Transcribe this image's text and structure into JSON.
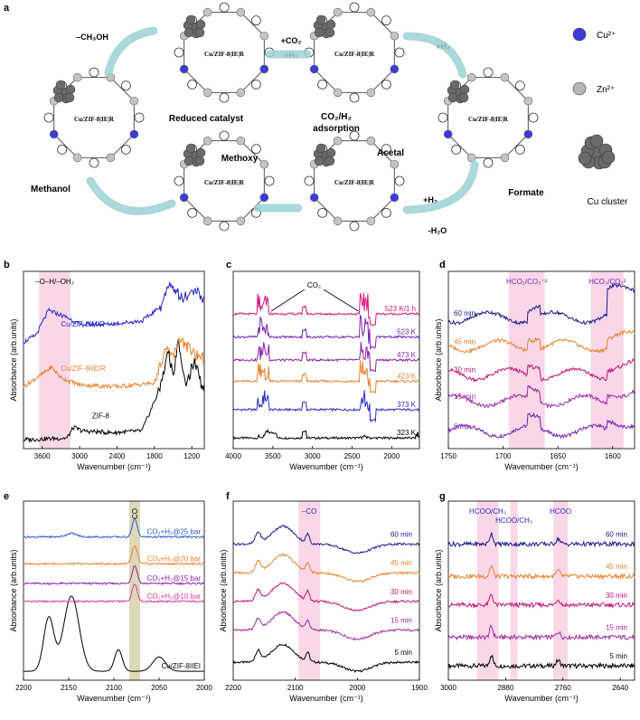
{
  "scheme": {
    "panel_letter": "a",
    "catalyst_label": "Cu/ZIF-8|IE|R",
    "step_labels": [
      "Reduced catalyst",
      "CO₂/H₂",
      "adsorption",
      "Formate",
      "Acetal",
      "Methoxy",
      "Methanol"
    ],
    "arrow_labels": [
      "–CH₃OH",
      "+CO₂",
      "+H₂",
      "+H₂",
      "+H₂",
      "-H₂O"
    ],
    "legend": [
      {
        "label": "Cu²⁺",
        "color": "#3b3bd6"
      },
      {
        "label": "Zn²⁺",
        "color": "#b5b5b5"
      },
      {
        "label": "Cu cluster",
        "color": "#6a6a6a"
      }
    ]
  },
  "chart_data": [
    {
      "panel": "b",
      "type": "line",
      "xlabel": "Wavenumber (cm⁻¹)",
      "ylabel": "Absorbance (arb.units)",
      "xlim": [
        3900,
        1000
      ],
      "xticks": [
        3600,
        3000,
        2400,
        1800,
        1200
      ],
      "highlight": {
        "from": 3650,
        "to": 3150,
        "label": "–O–H/–OH₂"
      },
      "series": [
        {
          "name": "ZIF-8",
          "color": "#000000",
          "offset": 0.05,
          "values": [
            [
              3900,
              0.05
            ],
            [
              3200,
              0.06
            ],
            [
              3100,
              0.12
            ],
            [
              2950,
              0.1
            ],
            [
              2500,
              0.09
            ],
            [
              2000,
              0.1
            ],
            [
              1700,
              0.35
            ],
            [
              1580,
              0.55
            ],
            [
              1500,
              0.4
            ],
            [
              1420,
              0.6
            ],
            [
              1300,
              0.35
            ],
            [
              1150,
              0.5
            ],
            [
              1000,
              0.3
            ]
          ]
        },
        {
          "name": "Cu/ZIF-8IIEIR",
          "color": "#e8822a",
          "offset": 0.35,
          "values": [
            [
              3900,
              0.35
            ],
            [
              3600,
              0.42
            ],
            [
              3450,
              0.46
            ],
            [
              3300,
              0.4
            ],
            [
              3000,
              0.36
            ],
            [
              2400,
              0.35
            ],
            [
              1800,
              0.37
            ],
            [
              1600,
              0.58
            ],
            [
              1500,
              0.52
            ],
            [
              1400,
              0.62
            ],
            [
              1200,
              0.55
            ],
            [
              1000,
              0.5
            ]
          ]
        },
        {
          "name": "Cu/ZIF-8IMIR",
          "color": "#2727c9",
          "offset": 0.6,
          "values": [
            [
              3900,
              0.6
            ],
            [
              3700,
              0.64
            ],
            [
              3500,
              0.78
            ],
            [
              3200,
              0.74
            ],
            [
              3000,
              0.7
            ],
            [
              2600,
              0.7
            ],
            [
              2000,
              0.72
            ],
            [
              1700,
              0.8
            ],
            [
              1550,
              0.94
            ],
            [
              1450,
              0.88
            ],
            [
              1300,
              0.86
            ],
            [
              1150,
              0.9
            ],
            [
              1000,
              0.84
            ]
          ]
        }
      ]
    },
    {
      "panel": "c",
      "type": "line",
      "xlabel": "Wavenumber (cm⁻¹)",
      "ylabel": "",
      "xlim": [
        4000,
        1650
      ],
      "xticks": [
        4000,
        3500,
        3000,
        2500,
        2000
      ],
      "annotation": "CO₂",
      "series": [
        {
          "name": "323 K",
          "color": "#000000",
          "level": 0.06
        },
        {
          "name": "373 K",
          "color": "#2727c9",
          "level": 0.22
        },
        {
          "name": "423 K",
          "color": "#e8822a",
          "level": 0.38
        },
        {
          "name": "473 K",
          "color": "#8a1fa8",
          "level": 0.5
        },
        {
          "name": "523 K",
          "color": "#7a1fb0",
          "level": 0.63
        },
        {
          "name": "523 K/1 h",
          "color": "#d4147a",
          "level": 0.76
        }
      ]
    },
    {
      "panel": "d",
      "type": "line",
      "xlabel": "Wavenumber (cm⁻¹)",
      "ylabel": "Absorbance (arb.units)",
      "xlim": [
        1750,
        1580
      ],
      "xticks": [
        1750,
        1700,
        1650,
        1600
      ],
      "highlights": [
        {
          "from": 1695,
          "to": 1662,
          "label": "HCO₂/CO₃⁻²"
        },
        {
          "from": 1620,
          "to": 1590,
          "label": "HCO₃/CO₃²"
        }
      ],
      "series": [
        {
          "name": "5 min",
          "color": "#7a1fb0",
          "level": 0.1
        },
        {
          "name": "15 min",
          "color": "#a0299e",
          "level": 0.27
        },
        {
          "name": "30 min",
          "color": "#c2157a",
          "level": 0.42
        },
        {
          "name": "45 min",
          "color": "#e8822a",
          "level": 0.58
        },
        {
          "name": "60 min",
          "color": "#1b1b8f",
          "level": 0.74
        }
      ]
    },
    {
      "panel": "e",
      "type": "line",
      "xlabel": "Wavenumber (cm⁻¹)",
      "ylabel": "Absorbance (arb.units)",
      "xlim": [
        2200,
        2000
      ],
      "xticks": [
        2200,
        2150,
        2100,
        2050,
        2000
      ],
      "highlight": {
        "from": 2083,
        "to": 2071,
        "label": "CO"
      },
      "series": [
        {
          "name": "Cu/ZIF-8IIEI",
          "color": "#000000",
          "level": 0.05
        },
        {
          "name": "CO₂+H₂@10 bar",
          "color": "#e0399a",
          "level": 0.44
        },
        {
          "name": "CO₂+H₂@15 bar",
          "color": "#8a1fa8",
          "level": 0.54
        },
        {
          "name": "CO₂+H₂@20 bar",
          "color": "#e8822a",
          "level": 0.65
        },
        {
          "name": "CO₂+H₂@25 bar",
          "color": "#2a5ad0",
          "level": 0.8
        }
      ]
    },
    {
      "panel": "f",
      "type": "line",
      "xlabel": "Wavenumber (cm⁻¹)",
      "ylabel": "Absorbance (arb.units)",
      "xlim": [
        2200,
        1900
      ],
      "xticks": [
        2200,
        2100,
        2000,
        1900
      ],
      "highlight": {
        "from": 2095,
        "to": 2060,
        "label": "–CO"
      },
      "series": [
        {
          "name": "5 min",
          "color": "#000000",
          "level": 0.1
        },
        {
          "name": "15 min",
          "color": "#a0299e",
          "level": 0.28
        },
        {
          "name": "30 min",
          "color": "#c2157a",
          "level": 0.44
        },
        {
          "name": "45 min",
          "color": "#e8822a",
          "level": 0.6
        },
        {
          "name": "60 min",
          "color": "#1b1b8f",
          "level": 0.76
        }
      ]
    },
    {
      "panel": "g",
      "type": "line",
      "xlabel": "Wavenumber (cm⁻¹)",
      "ylabel": "Absorbance (arb.units)",
      "xlim": [
        3000,
        2610
      ],
      "xticks": [
        3000,
        2880,
        2760,
        2640
      ],
      "highlights": [
        {
          "from": 2940,
          "to": 2895,
          "label": "HCOO/CH₃"
        },
        {
          "from": 2870,
          "to": 2855,
          "label": "HCOO/CH₃"
        },
        {
          "from": 2780,
          "to": 2750,
          "label": "HCOO"
        }
      ],
      "series": [
        {
          "name": "5 min",
          "color": "#000000",
          "level": 0.08
        },
        {
          "name": "15 min",
          "color": "#a0299e",
          "level": 0.24
        },
        {
          "name": "30 min",
          "color": "#c2157a",
          "level": 0.42
        },
        {
          "name": "45 min",
          "color": "#e8822a",
          "level": 0.58
        },
        {
          "name": "60 min",
          "color": "#1b1b8f",
          "level": 0.76
        }
      ]
    }
  ]
}
